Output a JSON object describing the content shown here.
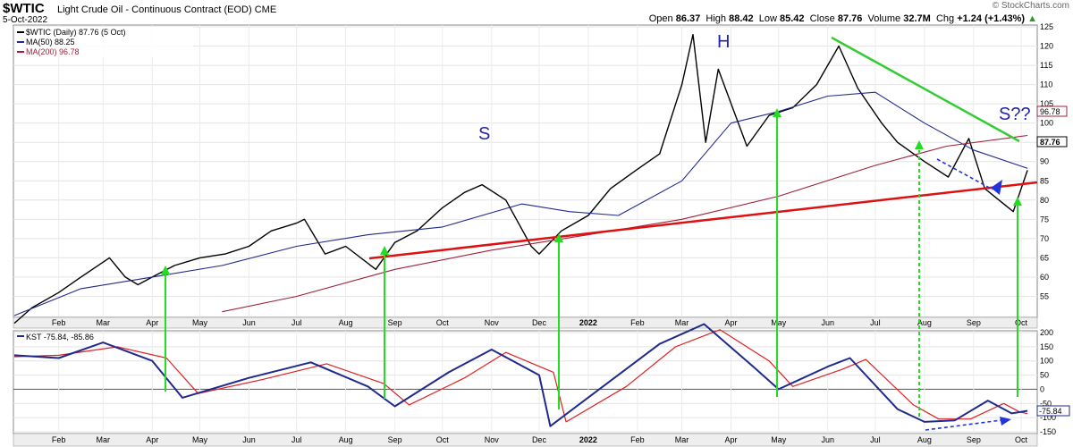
{
  "header": {
    "symbol": "$WTIC",
    "name": "Light Crude Oil - Continuous Contract (EOD)",
    "exchange": "CME",
    "date": "5-Oct-2022",
    "credit": "© StockCharts.com",
    "open_label": "Open",
    "open": "86.37",
    "high_label": "High",
    "high": "88.42",
    "low_label": "Low",
    "low": "85.42",
    "close_label": "Close",
    "close": "87.76",
    "volume_label": "Volume",
    "volume": "32.7M",
    "chg_label": "Chg",
    "chg": "+1.24 (+1.43%)",
    "chg_arrow": "▲"
  },
  "legend": {
    "price": "$WTIC (Daily) 87.76 (5 Oct)",
    "ma50": "MA(50) 88.25",
    "ma200": "MA(200) 96.78",
    "kst": "KST -75.84, -85.86"
  },
  "annotations": {
    "left_shoulder": "S",
    "head": "H",
    "right_shoulder": "S??"
  },
  "last_values": {
    "price": "87.76",
    "ma200": "96.78",
    "kst": "-75.84",
    "kst_signal": "-85.86"
  },
  "colors": {
    "price": "#000000",
    "ma50": "#1f2a8c",
    "ma200": "#a0203a",
    "neckline": "#dd1111",
    "trend": "#33cc33",
    "arrows": "#22dd22",
    "dashed_blue": "#2233dd",
    "kst": "#1f2a8c",
    "kst_signal": "#dd2222"
  },
  "chart_data": [
    {
      "type": "line",
      "title": "$WTIC Light Crude Oil - Continuous Contract (EOD)",
      "ylim": [
        50,
        125
      ],
      "y_ticks": [
        55,
        60,
        65,
        70,
        75,
        80,
        85,
        90,
        95,
        100,
        105,
        110,
        115,
        120,
        125
      ],
      "x_ticks": [
        "Feb",
        "Mar",
        "Apr",
        "May",
        "Jun",
        "Jul",
        "Aug",
        "Sep",
        "Oct",
        "Nov",
        "Dec",
        "2022",
        "Feb",
        "Mar",
        "Apr",
        "May",
        "Jun",
        "Jul",
        "Aug",
        "Sep",
        "Oct"
      ],
      "grid": true,
      "legend_position": "top-left",
      "series": [
        {
          "name": "$WTIC (Daily) 87.76 (5 Oct)",
          "x": [
            "2021-01-04",
            "2021-01-15",
            "2021-02-01",
            "2021-02-15",
            "2021-03-05",
            "2021-03-15",
            "2021-03-23",
            "2021-04-01",
            "2021-04-15",
            "2021-05-01",
            "2021-05-17",
            "2021-06-01",
            "2021-06-15",
            "2021-07-01",
            "2021-07-06",
            "2021-07-19",
            "2021-08-01",
            "2021-08-20",
            "2021-09-01",
            "2021-09-15",
            "2021-10-01",
            "2021-10-15",
            "2021-10-26",
            "2021-11-10",
            "2021-11-26",
            "2021-12-01",
            "2021-12-15",
            "2022-01-01",
            "2022-01-15",
            "2022-02-01",
            "2022-02-15",
            "2022-03-01",
            "2022-03-08",
            "2022-03-16",
            "2022-03-24",
            "2022-04-11",
            "2022-04-25",
            "2022-05-10",
            "2022-05-25",
            "2022-06-08",
            "2022-06-20",
            "2022-07-05",
            "2022-07-15",
            "2022-08-01",
            "2022-08-16",
            "2022-08-29",
            "2022-09-08",
            "2022-09-26",
            "2022-10-05"
          ],
          "values": [
            48,
            52,
            56,
            60,
            65,
            60,
            58,
            60,
            63,
            65,
            66,
            68,
            72,
            74,
            75,
            66,
            68,
            62,
            69,
            72,
            78,
            82,
            84,
            80,
            68,
            66,
            72,
            76,
            83,
            88,
            92,
            110,
            123,
            95,
            114,
            94,
            102,
            104,
            110,
            120,
            109,
            100,
            95,
            90,
            86,
            96,
            83,
            77,
            87.76
          ]
        },
        {
          "name": "MA(50) 88.25",
          "x": [
            "2021-01-04",
            "2021-02-15",
            "2021-04-01",
            "2021-05-15",
            "2021-07-01",
            "2021-08-15",
            "2021-10-01",
            "2021-11-20",
            "2021-12-20",
            "2022-01-20",
            "2022-03-01",
            "2022-04-01",
            "2022-05-01",
            "2022-06-01",
            "2022-07-01",
            "2022-08-01",
            "2022-09-01",
            "2022-10-05"
          ],
          "values": [
            50,
            57,
            60,
            63,
            68,
            71,
            73,
            79,
            77,
            76,
            85,
            100,
            103,
            107,
            108,
            100,
            93,
            88.25
          ]
        },
        {
          "name": "MA(200) 96.78",
          "x": [
            "2021-05-15",
            "2021-07-01",
            "2021-09-01",
            "2021-11-01",
            "2022-01-01",
            "2022-03-01",
            "2022-05-01",
            "2022-07-01",
            "2022-08-15",
            "2022-10-05"
          ],
          "values": [
            51,
            55,
            62,
            67,
            71,
            75,
            81,
            89,
            94,
            96.78
          ]
        }
      ]
    },
    {
      "type": "line",
      "title": "KST -75.84, -85.86",
      "ylim": [
        -150,
        200
      ],
      "y_ticks": [
        -150,
        -100,
        -50,
        0,
        50,
        100,
        150,
        200
      ],
      "x_ticks": [
        "Feb",
        "Mar",
        "Apr",
        "May",
        "Jun",
        "Jul",
        "Aug",
        "Sep",
        "Oct",
        "Nov",
        "Dec",
        "2022",
        "Feb",
        "Mar",
        "Apr",
        "May",
        "Jun",
        "Jul",
        "Aug",
        "Sep",
        "Oct"
      ],
      "grid": true,
      "legend_position": "top-left",
      "series": [
        {
          "name": "KST",
          "x": [
            "2021-01-04",
            "2021-02-01",
            "2021-03-01",
            "2021-04-01",
            "2021-04-20",
            "2021-06-01",
            "2021-07-10",
            "2021-08-15",
            "2021-09-01",
            "2021-10-05",
            "2021-11-01",
            "2021-12-01",
            "2021-12-08",
            "2022-01-15",
            "2022-02-15",
            "2022-03-15",
            "2022-04-15",
            "2022-05-01",
            "2022-06-01",
            "2022-06-15",
            "2022-07-15",
            "2022-08-01",
            "2022-08-20",
            "2022-09-10",
            "2022-09-25",
            "2022-10-05"
          ],
          "values": [
            120,
            110,
            165,
            100,
            -30,
            40,
            95,
            10,
            -60,
            60,
            140,
            50,
            -130,
            30,
            160,
            230,
            80,
            0,
            80,
            110,
            -70,
            -115,
            -110,
            -40,
            -85,
            -75.84
          ]
        },
        {
          "name": "Signal",
          "x": [
            "2021-01-04",
            "2021-02-01",
            "2021-03-10",
            "2021-04-10",
            "2021-04-30",
            "2021-06-10",
            "2021-07-20",
            "2021-08-25",
            "2021-09-10",
            "2021-10-15",
            "2021-11-10",
            "2021-12-10",
            "2021-12-18",
            "2022-01-25",
            "2022-02-25",
            "2022-03-25",
            "2022-04-25",
            "2022-05-10",
            "2022-06-10",
            "2022-06-25",
            "2022-07-25",
            "2022-08-10",
            "2022-08-30",
            "2022-09-20",
            "2022-09-30",
            "2022-10-05"
          ],
          "values": [
            115,
            120,
            150,
            110,
            -15,
            35,
            90,
            20,
            -55,
            40,
            130,
            60,
            -115,
            10,
            150,
            210,
            100,
            10,
            70,
            105,
            -55,
            -105,
            -105,
            -50,
            -80,
            -85.86
          ]
        }
      ]
    }
  ]
}
